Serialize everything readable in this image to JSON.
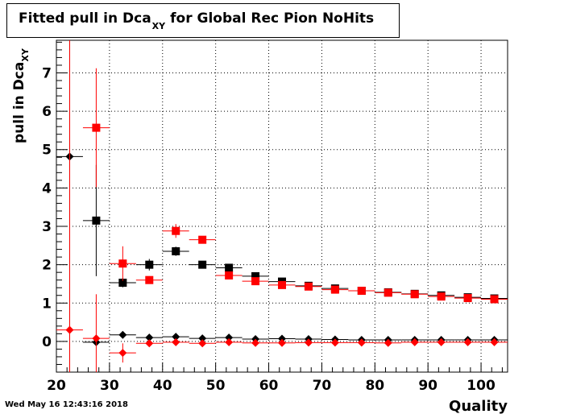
{
  "title": {
    "prefix": "Fitted pull in Dca",
    "subscript": "XY",
    "suffix": "for Global Rec Pion NoHits"
  },
  "footer": {
    "timestamp": "Wed May 16 12:43:16 2018"
  },
  "chart_data": {
    "type": "scatter",
    "title": "Fitted pull in Dca_XY for Global Rec Pion NoHits",
    "xlabel": "Quality",
    "ylabel": "pull in Dca_XY",
    "xlim": [
      20,
      105
    ],
    "ylim": [
      -0.8,
      7.85
    ],
    "xticks": [
      20,
      30,
      40,
      50,
      60,
      70,
      80,
      90,
      100
    ],
    "yticks": [
      0,
      1,
      2,
      3,
      4,
      5,
      6,
      7
    ],
    "grid": true,
    "series": [
      {
        "color": "#000000",
        "marker": "square",
        "points": [
          {
            "x": 27.5,
            "y": 3.15,
            "yerr": 1.45,
            "xerr": 2.5
          },
          {
            "x": 32.5,
            "y": 1.53,
            "yerr": 0.12,
            "xerr": 2.5
          },
          {
            "x": 37.5,
            "y": 2.0,
            "yerr": 0.15,
            "xerr": 2.5
          },
          {
            "x": 42.5,
            "y": 2.35,
            "yerr": 0.12,
            "xerr": 2.5
          },
          {
            "x": 47.5,
            "y": 2.0,
            "yerr": 0.06,
            "xerr": 2.5
          },
          {
            "x": 52.5,
            "y": 1.92,
            "yerr": 0.05,
            "xerr": 2.5
          },
          {
            "x": 57.5,
            "y": 1.7,
            "yerr": 0.04,
            "xerr": 2.5
          },
          {
            "x": 62.5,
            "y": 1.56,
            "yerr": 0.03,
            "xerr": 2.5
          },
          {
            "x": 67.5,
            "y": 1.45,
            "yerr": 0.03,
            "xerr": 2.5
          },
          {
            "x": 72.5,
            "y": 1.38,
            "yerr": 0.02,
            "xerr": 2.5
          },
          {
            "x": 77.5,
            "y": 1.32,
            "yerr": 0.02,
            "xerr": 2.5
          },
          {
            "x": 82.5,
            "y": 1.28,
            "yerr": 0.02,
            "xerr": 2.5
          },
          {
            "x": 87.5,
            "y": 1.24,
            "yerr": 0.02,
            "xerr": 2.5
          },
          {
            "x": 92.5,
            "y": 1.2,
            "yerr": 0.02,
            "xerr": 2.5
          },
          {
            "x": 97.5,
            "y": 1.15,
            "yerr": 0.02,
            "xerr": 2.5
          },
          {
            "x": 102.5,
            "y": 1.12,
            "yerr": 0.02,
            "xerr": 2.5
          }
        ]
      },
      {
        "color": "#000000",
        "marker": "diamond",
        "points": [
          {
            "x": 22.5,
            "y": 4.82,
            "yerr": 8,
            "xerr": 2.5
          },
          {
            "x": 27.5,
            "y": -0.02,
            "yerr": 0.05,
            "xerr": 2.5
          },
          {
            "x": 32.5,
            "y": 0.17,
            "yerr": 0.06,
            "xerr": 2.5
          },
          {
            "x": 37.5,
            "y": 0.1,
            "yerr": 0.05,
            "xerr": 2.5
          },
          {
            "x": 42.5,
            "y": 0.12,
            "yerr": 0.04,
            "xerr": 2.5
          },
          {
            "x": 47.5,
            "y": 0.08,
            "yerr": 0.03,
            "xerr": 2.5
          },
          {
            "x": 52.5,
            "y": 0.1,
            "yerr": 0.02,
            "xerr": 2.5
          },
          {
            "x": 57.5,
            "y": 0.06,
            "yerr": 0.02,
            "xerr": 2.5
          },
          {
            "x": 62.5,
            "y": 0.07,
            "yerr": 0.02,
            "xerr": 2.5
          },
          {
            "x": 67.5,
            "y": 0.06,
            "yerr": 0.02,
            "xerr": 2.5
          },
          {
            "x": 72.5,
            "y": 0.05,
            "yerr": 0.02,
            "xerr": 2.5
          },
          {
            "x": 77.5,
            "y": 0.04,
            "yerr": 0.02,
            "xerr": 2.5
          },
          {
            "x": 82.5,
            "y": 0.04,
            "yerr": 0.02,
            "xerr": 2.5
          },
          {
            "x": 87.5,
            "y": 0.04,
            "yerr": 0.02,
            "xerr": 2.5
          },
          {
            "x": 92.5,
            "y": 0.04,
            "yerr": 0.02,
            "xerr": 2.5
          },
          {
            "x": 97.5,
            "y": 0.04,
            "yerr": 0.02,
            "xerr": 2.5
          },
          {
            "x": 102.5,
            "y": 0.04,
            "yerr": 0.02,
            "xerr": 2.5
          }
        ]
      },
      {
        "color": "#ff0000",
        "marker": "square",
        "points": [
          {
            "x": 27.5,
            "y": 5.57,
            "yerr": 1.55,
            "xerr": 2.5
          },
          {
            "x": 32.5,
            "y": 2.03,
            "yerr": 0.45,
            "xerr": 2.5
          },
          {
            "x": 37.5,
            "y": 1.6,
            "yerr": 0.1,
            "xerr": 2.5
          },
          {
            "x": 42.5,
            "y": 2.88,
            "yerr": 0.18,
            "xerr": 2.5
          },
          {
            "x": 47.5,
            "y": 2.65,
            "yerr": 0.08,
            "xerr": 2.5
          },
          {
            "x": 52.5,
            "y": 1.72,
            "yerr": 0.05,
            "xerr": 2.5
          },
          {
            "x": 57.5,
            "y": 1.57,
            "yerr": 0.04,
            "xerr": 2.5
          },
          {
            "x": 62.5,
            "y": 1.47,
            "yerr": 0.03,
            "xerr": 2.5
          },
          {
            "x": 67.5,
            "y": 1.43,
            "yerr": 0.03,
            "xerr": 2.5
          },
          {
            "x": 72.5,
            "y": 1.35,
            "yerr": 0.02,
            "xerr": 2.5
          },
          {
            "x": 77.5,
            "y": 1.32,
            "yerr": 0.02,
            "xerr": 2.5
          },
          {
            "x": 82.5,
            "y": 1.27,
            "yerr": 0.02,
            "xerr": 2.5
          },
          {
            "x": 87.5,
            "y": 1.23,
            "yerr": 0.02,
            "xerr": 2.5
          },
          {
            "x": 92.5,
            "y": 1.17,
            "yerr": 0.02,
            "xerr": 2.5
          },
          {
            "x": 97.5,
            "y": 1.13,
            "yerr": 0.02,
            "xerr": 2.5
          },
          {
            "x": 102.5,
            "y": 1.1,
            "yerr": 0.02,
            "xerr": 2.5
          }
        ]
      },
      {
        "color": "#ff0000",
        "marker": "diamond",
        "points": [
          {
            "x": 22.5,
            "y": 0.3,
            "yerr": 8,
            "xerr": 2.5
          },
          {
            "x": 27.5,
            "y": 0.08,
            "yerr": 1.15,
            "xerr": 2.5
          },
          {
            "x": 32.5,
            "y": -0.3,
            "yerr": 0.25,
            "xerr": 2.5
          },
          {
            "x": 37.5,
            "y": -0.05,
            "yerr": 0.05,
            "xerr": 2.5
          },
          {
            "x": 42.5,
            "y": -0.02,
            "yerr": 0.04,
            "xerr": 2.5
          },
          {
            "x": 47.5,
            "y": -0.05,
            "yerr": 0.03,
            "xerr": 2.5
          },
          {
            "x": 52.5,
            "y": -0.02,
            "yerr": 0.02,
            "xerr": 2.5
          },
          {
            "x": 57.5,
            "y": -0.04,
            "yerr": 0.02,
            "xerr": 2.5
          },
          {
            "x": 62.5,
            "y": -0.04,
            "yerr": 0.02,
            "xerr": 2.5
          },
          {
            "x": 67.5,
            "y": -0.03,
            "yerr": 0.02,
            "xerr": 2.5
          },
          {
            "x": 72.5,
            "y": -0.03,
            "yerr": 0.02,
            "xerr": 2.5
          },
          {
            "x": 77.5,
            "y": -0.03,
            "yerr": 0.02,
            "xerr": 2.5
          },
          {
            "x": 82.5,
            "y": -0.04,
            "yerr": 0.02,
            "xerr": 2.5
          },
          {
            "x": 87.5,
            "y": -0.02,
            "yerr": 0.02,
            "xerr": 2.5
          },
          {
            "x": 92.5,
            "y": -0.02,
            "yerr": 0.02,
            "xerr": 2.5
          },
          {
            "x": 97.5,
            "y": -0.02,
            "yerr": 0.02,
            "xerr": 2.5
          },
          {
            "x": 102.5,
            "y": -0.02,
            "yerr": 0.02,
            "xerr": 2.5
          }
        ]
      }
    ]
  }
}
